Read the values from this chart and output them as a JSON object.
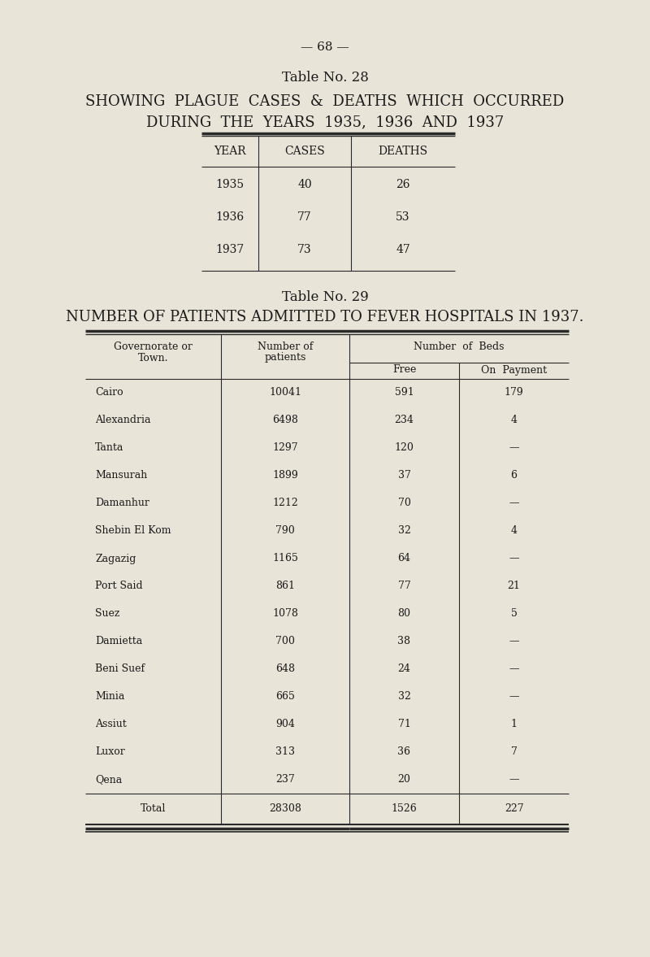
{
  "bg_color": "#e8e4d8",
  "text_color": "#1a1a1a",
  "page_number": "— 68 —",
  "table28": {
    "title1": "Table No. 28",
    "title2": "SHOWING  PLAGUE  CASES  &  DEATHS  WHICH  OCCURRED",
    "title3": "DURING  THE  YEARS  1935,  1936  AND  1937",
    "headers": [
      "YEAR",
      "CASES",
      "DEATHS"
    ],
    "rows": [
      [
        "1935",
        "40",
        "26"
      ],
      [
        "1936",
        "77",
        "53"
      ],
      [
        "1937",
        "73",
        "47"
      ]
    ]
  },
  "table29": {
    "title1": "Table No. 29",
    "title2": "NUMBER OF PATIENTS ADMITTED TO FEVER HOSPITALS IN 1937.",
    "rows": [
      [
        "Cairo",
        "10041",
        "591",
        "179"
      ],
      [
        "Alexandria",
        "6498",
        "234",
        "4"
      ],
      [
        "Tanta",
        "1297",
        "120",
        "—"
      ],
      [
        "Mansurah",
        "1899",
        "37",
        "6"
      ],
      [
        "Damanhur",
        "1212",
        "70",
        "—"
      ],
      [
        "Shebin El Kom",
        "790",
        "32",
        "4"
      ],
      [
        "Zagazig",
        "1165",
        "64",
        "—"
      ],
      [
        "Port Said",
        "861",
        "77",
        "21"
      ],
      [
        "Suez",
        "1078",
        "80",
        "5"
      ],
      [
        "Damietta",
        "700",
        "38",
        "—"
      ],
      [
        "Beni Suef",
        "648",
        "24",
        "—"
      ],
      [
        "Minia",
        "665",
        "32",
        "—"
      ],
      [
        "Assiut",
        "904",
        "71",
        "1"
      ],
      [
        "Luxor",
        "313",
        "36",
        "7"
      ],
      [
        "Qena",
        "237",
        "20",
        "—"
      ]
    ],
    "total_row": [
      "Total",
      "28308",
      "1526",
      "227"
    ]
  }
}
